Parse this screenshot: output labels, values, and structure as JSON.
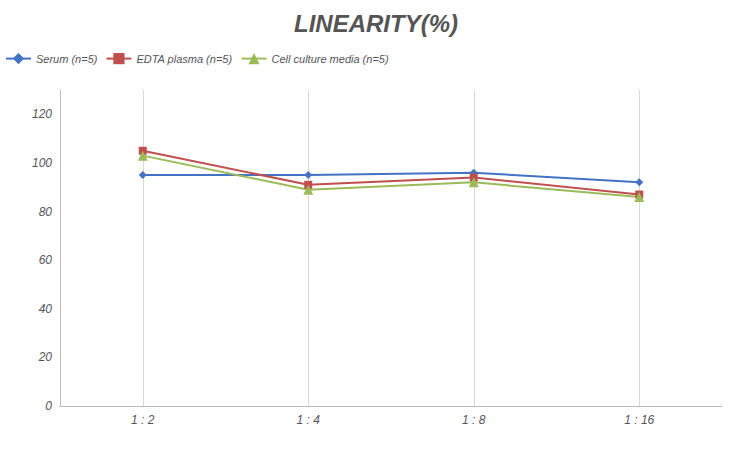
{
  "chart_data": {
    "type": "line",
    "title": "LINEARITY(%)",
    "categories": [
      "1 : 2",
      "1 : 4",
      "1 : 8",
      "1 : 16"
    ],
    "series": [
      {
        "name": "Serum (n=5)",
        "color": "#4472C4",
        "marker": "diamond",
        "values": [
          95,
          95,
          96,
          92
        ]
      },
      {
        "name": "EDTA plasma (n=5)",
        "color": "#C0504D",
        "marker": "square",
        "values": [
          105,
          91,
          94,
          87
        ]
      },
      {
        "name": "Cell culture media (n=5)",
        "color": "#9BBB59",
        "marker": "triangle",
        "values": [
          103,
          89,
          92,
          86
        ]
      }
    ],
    "ylim": [
      0,
      130
    ],
    "yticks": [
      0,
      20,
      40,
      60,
      80,
      100,
      120
    ],
    "grid": true,
    "legend": "upper left"
  }
}
